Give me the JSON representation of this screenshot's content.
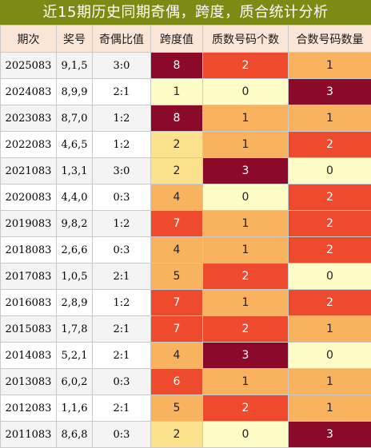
{
  "title": "近15期历史同期奇偶，跨度，质合统计分析",
  "headers": [
    "期次",
    "奖号",
    "奇偶比值",
    "跨度值",
    "质数号码个数",
    "合数号码数量"
  ],
  "rows": [
    {
      "period": "2025083",
      "number": "9,1,5",
      "ratio": "3:0",
      "span": "8",
      "prime": "2",
      "composite": "1"
    },
    {
      "period": "2024083",
      "number": "8,9,9",
      "ratio": "2:1",
      "span": "1",
      "prime": "0",
      "composite": "3"
    },
    {
      "period": "2023083",
      "number": "8,7,0",
      "ratio": "1:2",
      "span": "8",
      "prime": "1",
      "composite": "1"
    },
    {
      "period": "2022083",
      "number": "4,6,5",
      "ratio": "1:2",
      "span": "2",
      "prime": "1",
      "composite": "2"
    },
    {
      "period": "2021083",
      "number": "1,3,1",
      "ratio": "3:0",
      "span": "2",
      "prime": "3",
      "composite": "0"
    },
    {
      "period": "2020083",
      "number": "4,4,0",
      "ratio": "0:3",
      "span": "4",
      "prime": "0",
      "composite": "2"
    },
    {
      "period": "2019083",
      "number": "9,8,2",
      "ratio": "1:2",
      "span": "7",
      "prime": "1",
      "composite": "2"
    },
    {
      "period": "2018083",
      "number": "2,6,6",
      "ratio": "0:3",
      "span": "4",
      "prime": "1",
      "composite": "2"
    },
    {
      "period": "2017083",
      "number": "1,0,5",
      "ratio": "2:1",
      "span": "5",
      "prime": "2",
      "composite": "0"
    },
    {
      "period": "2016083",
      "number": "2,8,9",
      "ratio": "1:2",
      "span": "7",
      "prime": "1",
      "composite": "2"
    },
    {
      "period": "2015083",
      "number": "1,7,8",
      "ratio": "2:1",
      "span": "7",
      "prime": "2",
      "composite": "1"
    },
    {
      "period": "2014083",
      "number": "5,2,1",
      "ratio": "2:1",
      "span": "4",
      "prime": "3",
      "composite": "0"
    },
    {
      "period": "2013083",
      "number": "6,0,2",
      "ratio": "0:3",
      "span": "6",
      "prime": "1",
      "composite": "1"
    },
    {
      "period": "2012083",
      "number": "1,1,6",
      "ratio": "2:1",
      "span": "5",
      "prime": "2",
      "composite": "1"
    },
    {
      "period": "2011083",
      "number": "8,6,8",
      "ratio": "0:3",
      "span": "2",
      "prime": "0",
      "composite": "3"
    }
  ],
  "colors": {
    "title_bg": "#7d8a14",
    "header_bg": "#fbe5d6",
    "hot": "#8b0a2a",
    "red": "#ee4a2e",
    "orange": "#f9b25e",
    "mid": "#fde28e",
    "pale": "#fefcc7"
  }
}
